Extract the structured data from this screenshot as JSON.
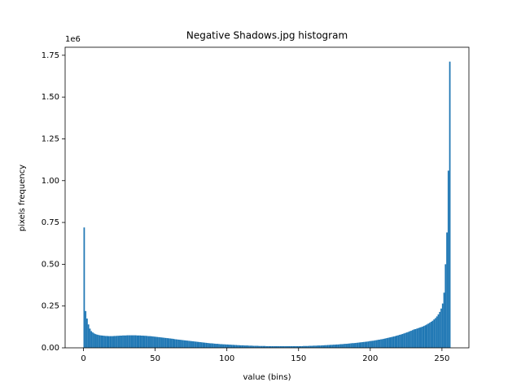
{
  "chart_data": {
    "type": "histogram",
    "title": "Negative Shadows.jpg histogram",
    "xlabel": "value (bins)",
    "ylabel": "pixels frequency",
    "y_offset_label": "1e6",
    "color": "#1f77b4",
    "bins": [
      0,
      1,
      2,
      3,
      4,
      5,
      6,
      7,
      8,
      9,
      10,
      11,
      12,
      13,
      14,
      15,
      16,
      17,
      18,
      19,
      20,
      21,
      22,
      23,
      24,
      25,
      26,
      27,
      28,
      29,
      30,
      31,
      32,
      33,
      34,
      35,
      36,
      37,
      38,
      39,
      40,
      41,
      42,
      43,
      44,
      45,
      46,
      47,
      48,
      49,
      50,
      51,
      52,
      53,
      54,
      55,
      56,
      57,
      58,
      59,
      60,
      61,
      62,
      63,
      64,
      65,
      66,
      67,
      68,
      69,
      70,
      71,
      72,
      73,
      74,
      75,
      76,
      77,
      78,
      79,
      80,
      81,
      82,
      83,
      84,
      85,
      86,
      87,
      88,
      89,
      90,
      91,
      92,
      93,
      94,
      95,
      96,
      97,
      98,
      99,
      100,
      101,
      102,
      103,
      104,
      105,
      106,
      107,
      108,
      109,
      110,
      111,
      112,
      113,
      114,
      115,
      116,
      117,
      118,
      119,
      120,
      121,
      122,
      123,
      124,
      125,
      126,
      127,
      128,
      129,
      130,
      131,
      132,
      133,
      134,
      135,
      136,
      137,
      138,
      139,
      140,
      141,
      142,
      143,
      144,
      145,
      146,
      147,
      148,
      149,
      150,
      151,
      152,
      153,
      154,
      155,
      156,
      157,
      158,
      159,
      160,
      161,
      162,
      163,
      164,
      165,
      166,
      167,
      168,
      169,
      170,
      171,
      172,
      173,
      174,
      175,
      176,
      177,
      178,
      179,
      180,
      181,
      182,
      183,
      184,
      185,
      186,
      187,
      188,
      189,
      190,
      191,
      192,
      193,
      194,
      195,
      196,
      197,
      198,
      199,
      200,
      201,
      202,
      203,
      204,
      205,
      206,
      207,
      208,
      209,
      210,
      211,
      212,
      213,
      214,
      215,
      216,
      217,
      218,
      219,
      220,
      221,
      222,
      223,
      224,
      225,
      226,
      227,
      228,
      229,
      230,
      231,
      232,
      233,
      234,
      235,
      236,
      237,
      238,
      239,
      240,
      241,
      242,
      243,
      244,
      245,
      246,
      247,
      248,
      249,
      250,
      251,
      252,
      253,
      254,
      255,
      256
    ],
    "counts": [
      720000,
      220000,
      175000,
      140000,
      115000,
      100000,
      92000,
      86000,
      82000,
      79000,
      77000,
      75000,
      74000,
      73000,
      72000,
      71000,
      71000,
      70000,
      70000,
      70000,
      70000,
      71000,
      71000,
      72000,
      72000,
      73000,
      73000,
      74000,
      74000,
      74000,
      75000,
      75000,
      75000,
      75000,
      75000,
      75000,
      75000,
      74000,
      74000,
      74000,
      73000,
      73000,
      72000,
      72000,
      71000,
      70000,
      70000,
      69000,
      68000,
      67000,
      66000,
      65000,
      64000,
      63000,
      62000,
      61000,
      60000,
      59000,
      58000,
      57000,
      56000,
      55000,
      54000,
      52000,
      51000,
      50000,
      49000,
      48000,
      47000,
      46000,
      45000,
      44000,
      43000,
      42000,
      41000,
      40000,
      39000,
      38000,
      37000,
      36000,
      35000,
      34000,
      33000,
      32000,
      31000,
      30000,
      29000,
      28000,
      27000,
      27000,
      26000,
      25000,
      24000,
      24000,
      23000,
      22000,
      22000,
      21000,
      21000,
      20000,
      20000,
      19000,
      19000,
      18000,
      18000,
      17000,
      17000,
      16000,
      16000,
      15000,
      15000,
      15000,
      14000,
      14000,
      14000,
      13000,
      13000,
      13000,
      12000,
      12000,
      12000,
      12000,
      11000,
      11000,
      11000,
      11000,
      11000,
      10000,
      10000,
      10000,
      10000,
      10000,
      10000,
      10000,
      10000,
      10000,
      10000,
      10000,
      10000,
      10000,
      10000,
      10000,
      10000,
      10000,
      10000,
      10000,
      10000,
      10000,
      10000,
      10000,
      10000,
      10000,
      10000,
      11000,
      11000,
      11000,
      11000,
      12000,
      12000,
      12000,
      13000,
      13000,
      13000,
      14000,
      14000,
      14000,
      15000,
      15000,
      16000,
      16000,
      17000,
      17000,
      18000,
      18000,
      19000,
      19000,
      20000,
      20000,
      21000,
      22000,
      22000,
      23000,
      24000,
      24000,
      25000,
      26000,
      27000,
      28000,
      28000,
      29000,
      30000,
      31000,
      32000,
      33000,
      34000,
      35000,
      36000,
      37000,
      38000,
      40000,
      41000,
      42000,
      43000,
      45000,
      46000,
      48000,
      49000,
      51000,
      52000,
      54000,
      56000,
      58000,
      60000,
      62000,
      64000,
      66000,
      68000,
      70000,
      73000,
      75000,
      78000,
      80000,
      83000,
      86000,
      89000,
      92000,
      95000,
      99000,
      102000,
      106000,
      110000,
      112000,
      115000,
      118000,
      121000,
      124000,
      127000,
      131000,
      135000,
      140000,
      145000,
      150000,
      156000,
      162000,
      170000,
      178000,
      188000,
      200000,
      215000,
      235000,
      265000,
      330000,
      500000,
      690000,
      1060000,
      1712000
    ],
    "xlim": [
      -12.8,
      268.8
    ],
    "ylim": [
      0,
      1798000
    ],
    "xticks": [
      0,
      50,
      100,
      150,
      200,
      250
    ],
    "yticks": [
      {
        "value": 0,
        "label": "0.00"
      },
      {
        "value": 250000,
        "label": "0.25"
      },
      {
        "value": 500000,
        "label": "0.50"
      },
      {
        "value": 750000,
        "label": "0.75"
      },
      {
        "value": 1000000,
        "label": "1.00"
      },
      {
        "value": 1250000,
        "label": "1.25"
      },
      {
        "value": 1500000,
        "label": "1.50"
      },
      {
        "value": 1750000,
        "label": "1.75"
      }
    ],
    "grid": false
  }
}
